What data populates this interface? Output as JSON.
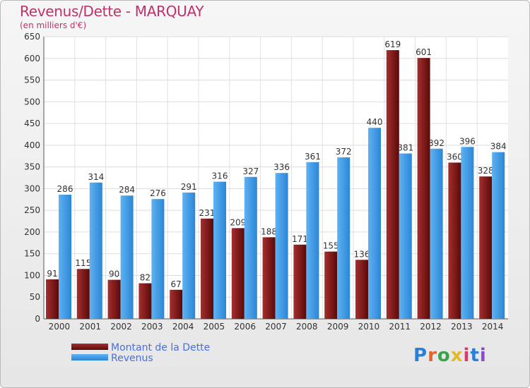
{
  "header": {
    "title": "Revenus/Dette - MARQUAY",
    "subtitle": "(en milliers d'€)"
  },
  "legend": {
    "items": [
      {
        "label": "Montant de la Dette",
        "color": "#7b1616"
      },
      {
        "label": "Revenus",
        "color": "#3c9be6"
      }
    ]
  },
  "logo": {
    "text": "Proxiti",
    "colors": [
      "#2c7fd6",
      "#e8632a",
      "#3aa34a",
      "#e4b82c",
      "#d63b6b",
      "#2c7fd6",
      "#8a4bd1"
    ]
  },
  "chart_data": {
    "type": "bar",
    "categories": [
      "2000",
      "2001",
      "2002",
      "2003",
      "2004",
      "2005",
      "2006",
      "2007",
      "2008",
      "2009",
      "2010",
      "2011",
      "2012",
      "2013",
      "2014"
    ],
    "series": [
      {
        "name": "Montant de la Dette",
        "color": "#7b1616",
        "values": [
          91,
          115,
          90,
          82,
          67,
          231,
          209,
          188,
          171,
          155,
          136,
          619,
          601,
          360,
          328
        ]
      },
      {
        "name": "Revenus",
        "color": "#3c9be6",
        "values": [
          286,
          314,
          284,
          276,
          291,
          316,
          327,
          336,
          361,
          372,
          440,
          381,
          392,
          396,
          384
        ]
      }
    ],
    "yticks": [
      0,
      50,
      100,
      150,
      200,
      250,
      300,
      350,
      400,
      450,
      500,
      550,
      600,
      650
    ],
    "ylim": [
      0,
      650
    ],
    "grid": true,
    "legend_position": "bottom-left",
    "data_labels": [
      "91",
      "115",
      "90",
      "82",
      "67",
      "231",
      "209",
      "188",
      "171",
      "155",
      "136",
      "619",
      "601",
      "360",
      "328",
      "286",
      "314",
      "284",
      "276",
      "291",
      "316",
      "327",
      "336",
      "361",
      "372",
      "440",
      "381",
      "392",
      "396",
      "384"
    ]
  }
}
